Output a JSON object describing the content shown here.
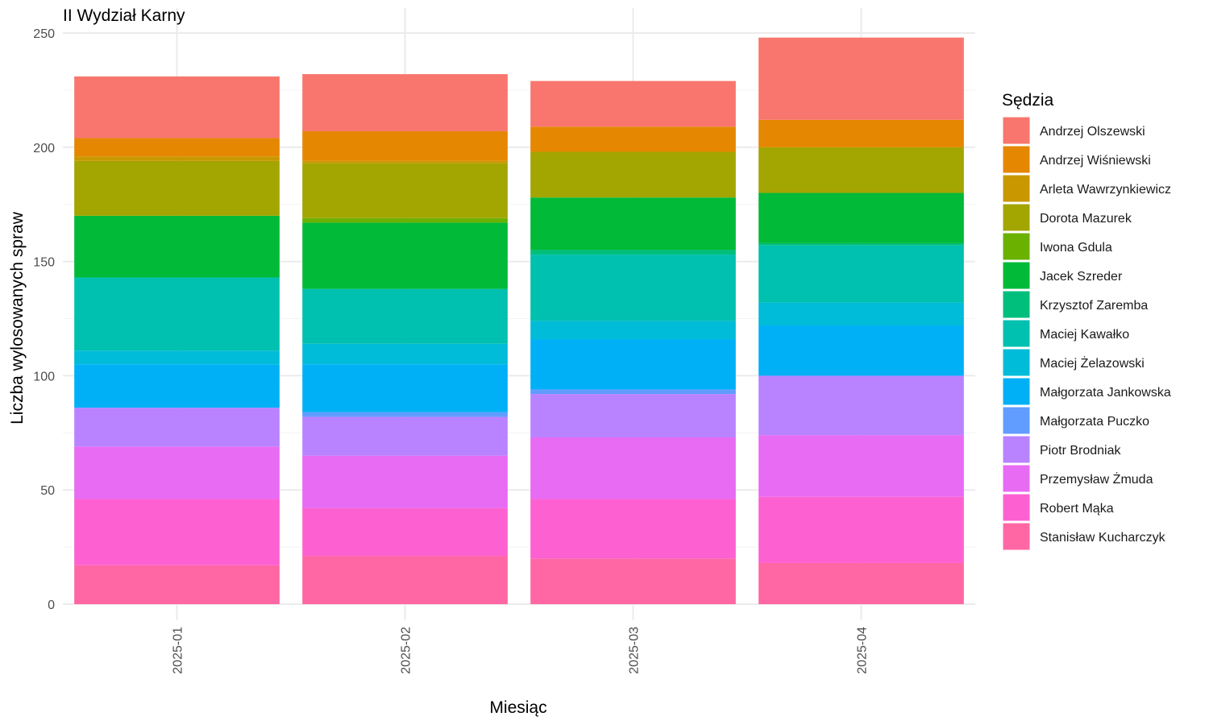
{
  "chart_data": {
    "type": "bar",
    "stacked": true,
    "title": "II Wydział Karny",
    "xlabel": "Miesiąc",
    "ylabel": "Liczba wylosowanych spraw",
    "ylim": [
      0,
      250
    ],
    "yticks": [
      0,
      50,
      100,
      150,
      200,
      250
    ],
    "grid": true,
    "legend_position": "right",
    "legend_title": "Sędzia",
    "categories": [
      "2025-01",
      "2025-02",
      "2025-03",
      "2025-04"
    ],
    "series": [
      {
        "name": "Andrzej Olszewski",
        "color": "#F8766D",
        "values": [
          27,
          25,
          20,
          36
        ]
      },
      {
        "name": "Andrzej Wiśniewski",
        "color": "#E58700",
        "values": [
          8,
          13,
          11,
          12
        ]
      },
      {
        "name": "Arleta Wawrzynkiewicz",
        "color": "#C99800",
        "values": [
          2,
          1,
          0,
          0
        ]
      },
      {
        "name": "Dorota Mazurek",
        "color": "#A3A500",
        "values": [
          24,
          24,
          20,
          20
        ]
      },
      {
        "name": "Iwona Gdula",
        "color": "#6BB100",
        "values": [
          0,
          2,
          0,
          0
        ]
      },
      {
        "name": "Jacek Szreder",
        "color": "#00BA38",
        "values": [
          27,
          29,
          23,
          22
        ]
      },
      {
        "name": "Krzysztof Zaremba",
        "color": "#00BF7D",
        "values": [
          0,
          0,
          2,
          1
        ]
      },
      {
        "name": "Maciej Kawałko",
        "color": "#00C0AF",
        "values": [
          32,
          24,
          29,
          25
        ]
      },
      {
        "name": "Maciej Żelazowski",
        "color": "#00BCD8",
        "values": [
          6,
          9,
          8,
          10
        ]
      },
      {
        "name": "Małgorzata Jankowska",
        "color": "#00B0F6",
        "values": [
          19,
          21,
          22,
          22
        ]
      },
      {
        "name": "Małgorzata Puczko",
        "color": "#619CFF",
        "values": [
          0,
          2,
          2,
          0
        ]
      },
      {
        "name": "Piotr Brodniak",
        "color": "#B983FF",
        "values": [
          17,
          17,
          19,
          26
        ]
      },
      {
        "name": "Przemysław Żmuda",
        "color": "#E76BF3",
        "values": [
          23,
          23,
          27,
          27
        ]
      },
      {
        "name": "Robert Mąka",
        "color": "#FD61D1",
        "values": [
          29,
          21,
          26,
          29
        ]
      },
      {
        "name": "Stanisław Kucharczyk",
        "color": "#FF67A4",
        "values": [
          17,
          21,
          20,
          18
        ]
      }
    ]
  }
}
